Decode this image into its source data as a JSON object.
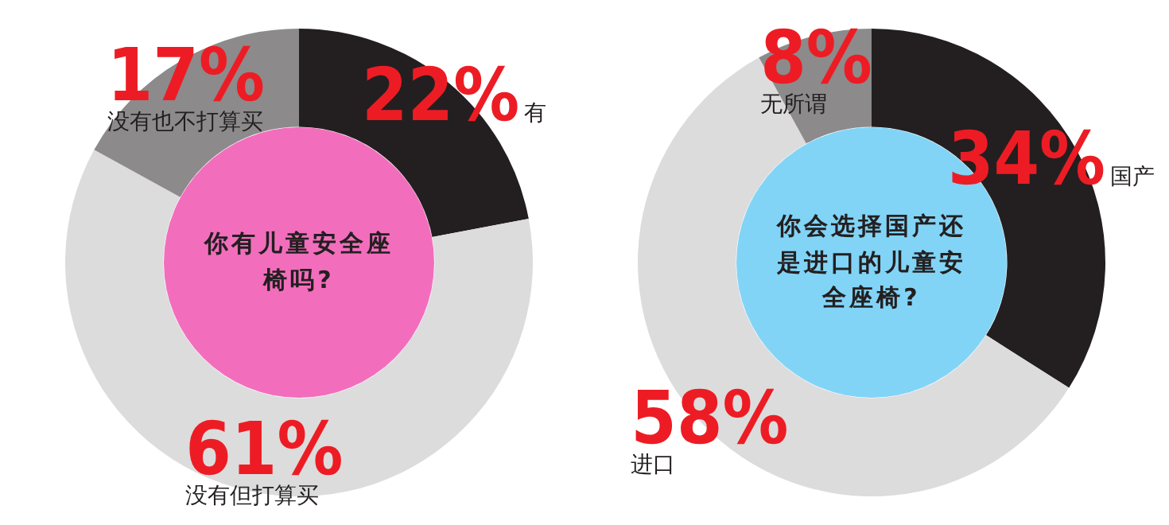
{
  "chart_data": [
    {
      "type": "donut",
      "title": "你有儿童安全座椅吗?",
      "categories": [
        "有",
        "没有但打算买",
        "没有也不打算买"
      ],
      "values": [
        22,
        61,
        17
      ],
      "colors": [
        "#231f20",
        "#dcdcdc",
        "#8c8a8b"
      ],
      "value_labels": [
        "22%",
        "61%",
        "17%"
      ]
    },
    {
      "type": "donut",
      "title": "你会选择国产还是进口的儿童安全座椅?",
      "categories": [
        "国产",
        "进口",
        "无所谓"
      ],
      "values": [
        34,
        58,
        8
      ],
      "colors": [
        "#231f20",
        "#dcdcdc",
        "#8c8a8b"
      ],
      "value_labels": [
        "34%",
        "58%",
        "8%"
      ]
    }
  ]
}
